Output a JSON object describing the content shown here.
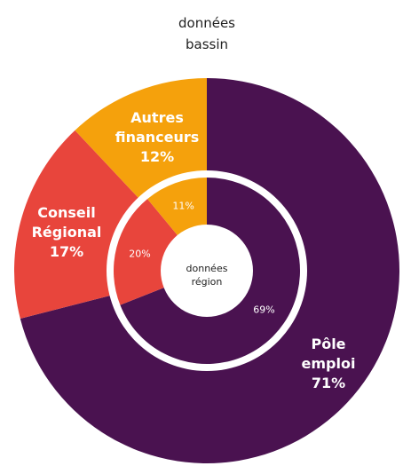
{
  "chart_data": {
    "type": "donut",
    "categories": [
      "Pôle emploi",
      "Conseil Régional",
      "Autres financeurs"
    ],
    "colors": [
      "#4a1250",
      "#e8453c",
      "#f5a10c"
    ],
    "rings": [
      {
        "name": "données bassin",
        "values": [
          71,
          17,
          12
        ],
        "value_labels": [
          "71%",
          "17%",
          "12%"
        ]
      },
      {
        "name": "données région",
        "values": [
          69,
          20,
          11
        ],
        "value_labels": [
          "69%",
          "20%",
          "11%"
        ]
      }
    ]
  }
}
